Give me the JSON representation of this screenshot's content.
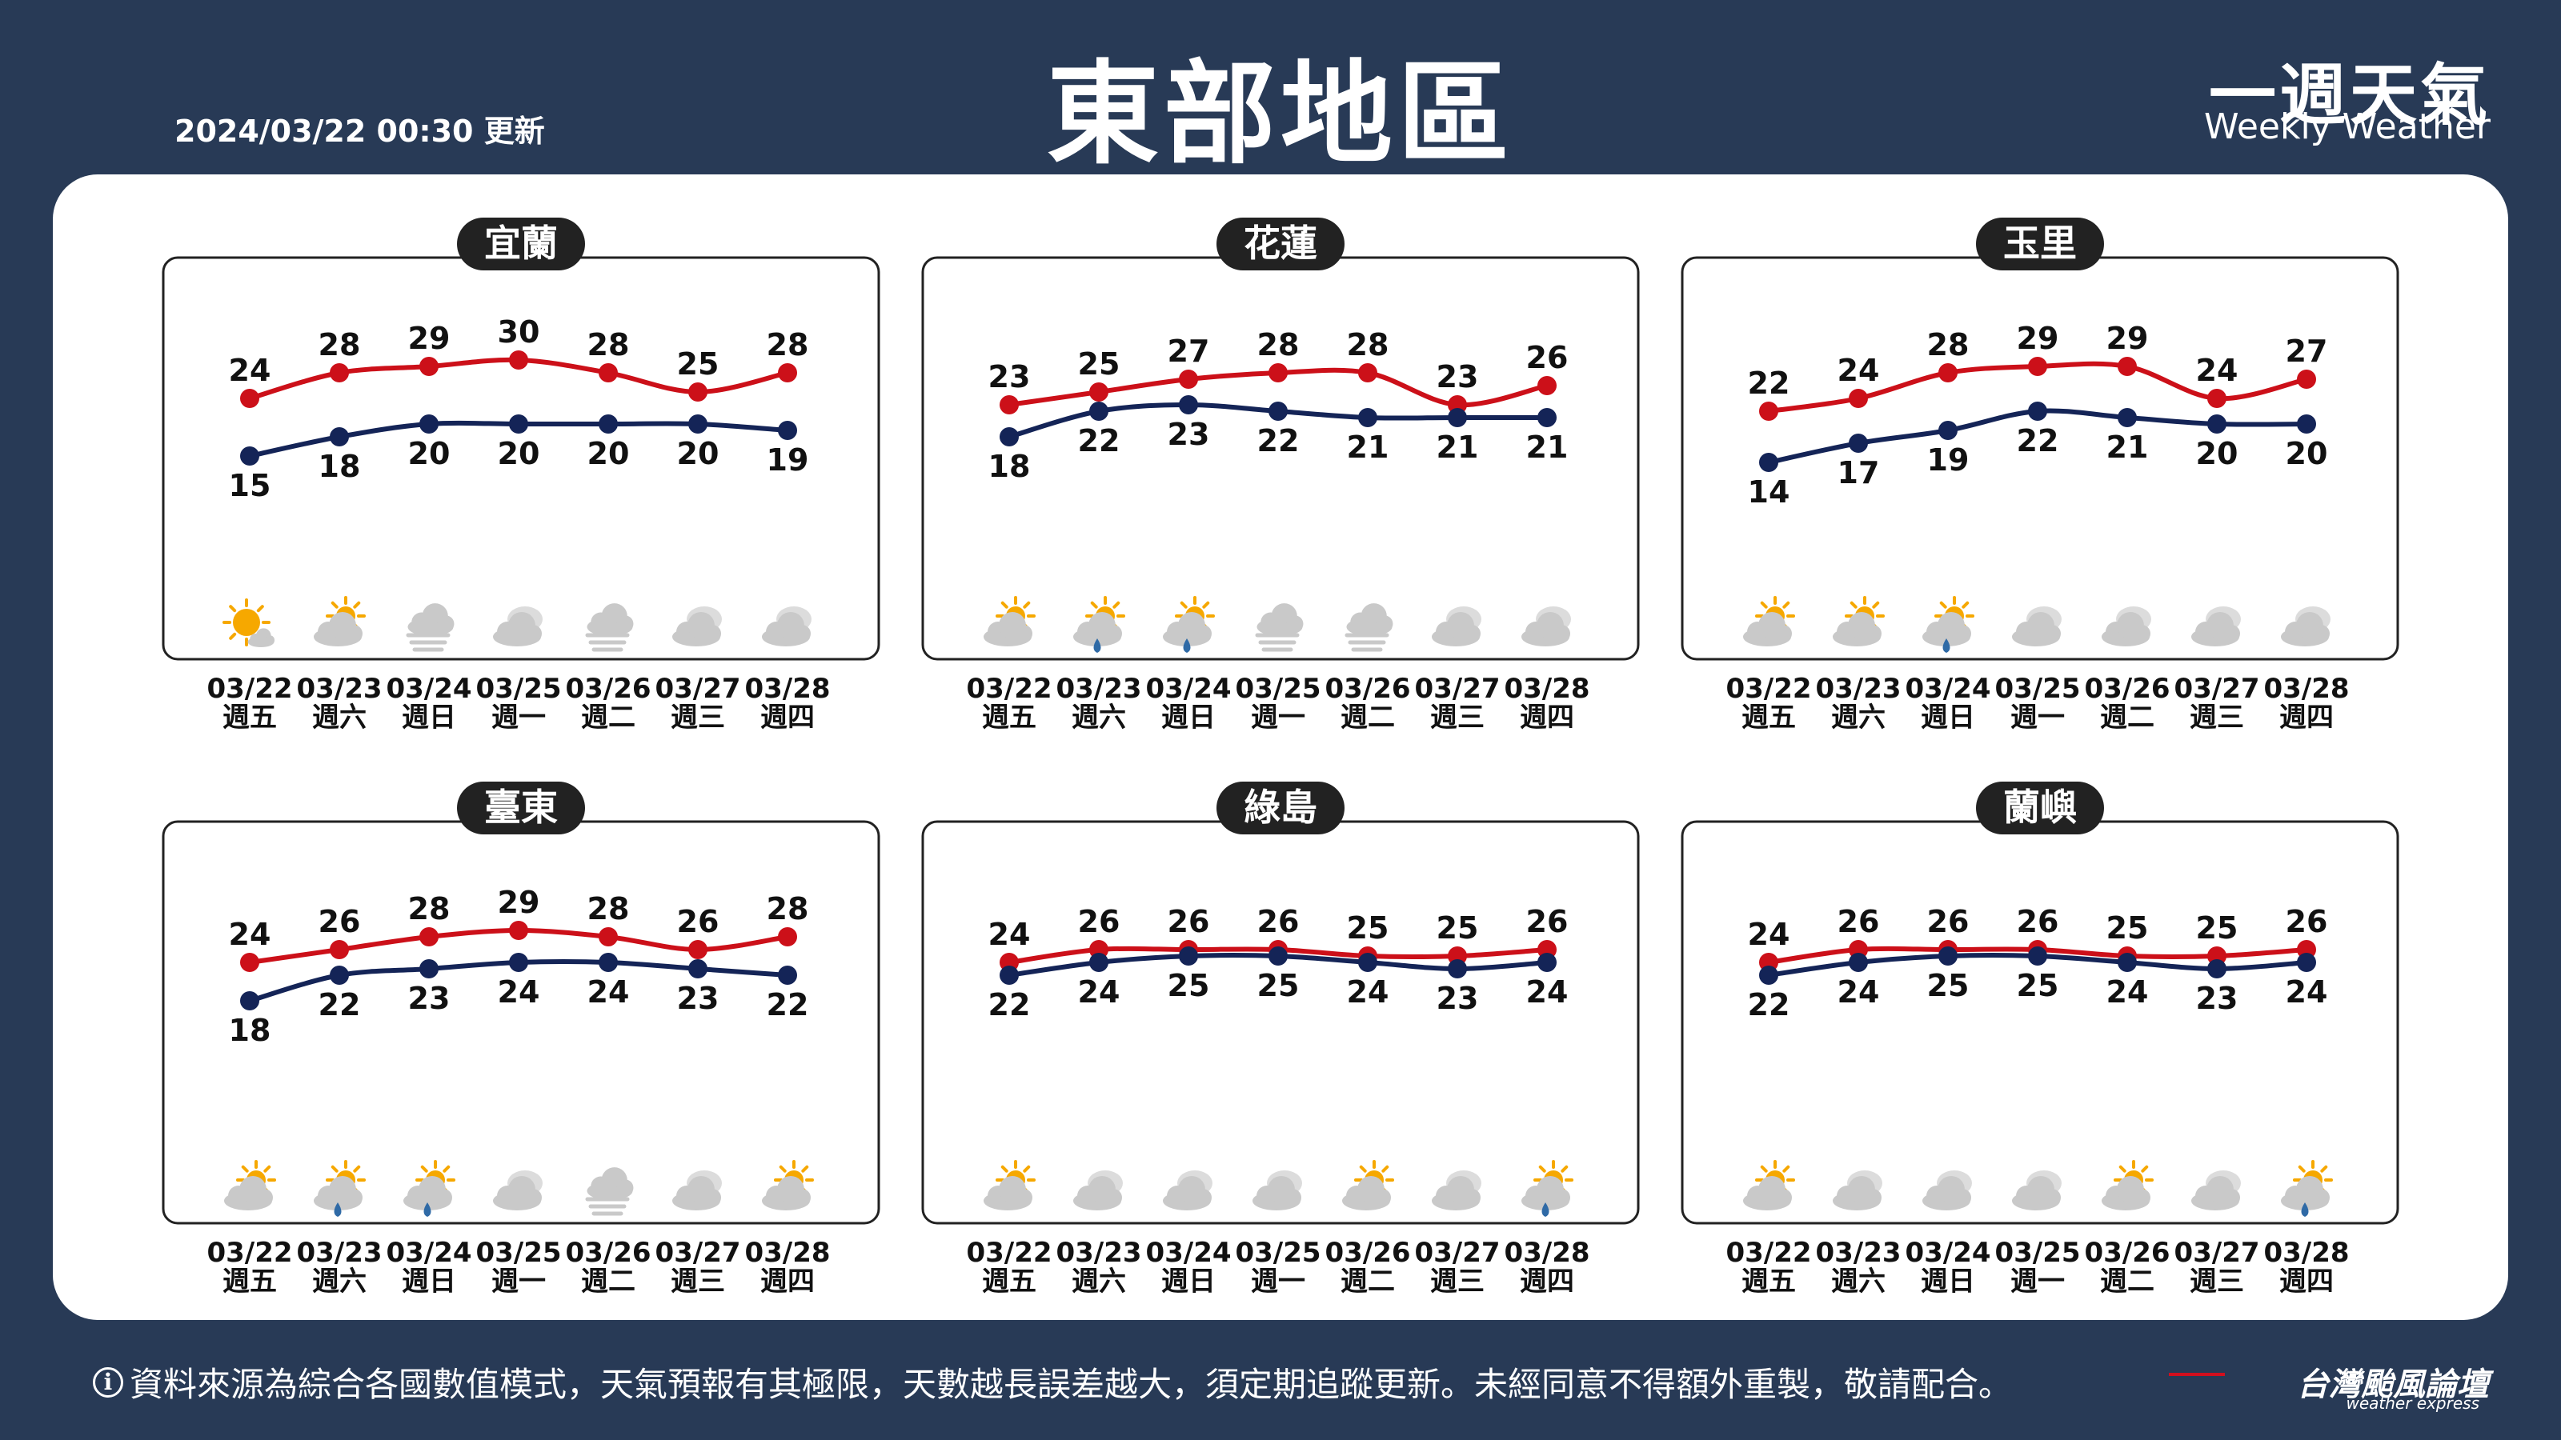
{
  "header": {
    "title": "東部地區",
    "update_time": "2024/03/22 00:30 更新",
    "brand_cn": "一週天氣",
    "brand_en": "Weekly Weather"
  },
  "footer": {
    "info_icon": "i",
    "note": "資料來源為綜合各國數值模式，天氣預報有其極限，天數越長誤差越大，須定期追蹤更新。未經同意不得額外重製，敬請配合。",
    "logo_cn": "台灣颱風論壇",
    "logo_en": "weather express"
  },
  "colors": {
    "background": "#283a56",
    "high_line": "#cc1019",
    "low_line": "#142457",
    "label_pill": "#222222",
    "sun": "#f6a800",
    "cloud": "#c9c9c9",
    "rain": "#2f6aa6"
  },
  "chart_data": [
    {
      "type": "line",
      "title": "宜蘭",
      "dates": [
        "03/22",
        "03/23",
        "03/24",
        "03/25",
        "03/26",
        "03/27",
        "03/28"
      ],
      "weekdays": [
        "週五",
        "週六",
        "週日",
        "週一",
        "週二",
        "週三",
        "週四"
      ],
      "series": [
        {
          "values": [
            24,
            28,
            29,
            30,
            28,
            25,
            28
          ]
        },
        {
          "values": [
            15,
            18,
            20,
            20,
            20,
            20,
            19
          ]
        }
      ],
      "icons": [
        "sunny-cloud-icon",
        "partly-cloudy-icon",
        "fog-cloud-icon",
        "cloudy-icon",
        "fog-cloud-icon",
        "cloudy-icon",
        "cloudy-icon"
      ]
    },
    {
      "type": "line",
      "title": "花蓮",
      "dates": [
        "03/22",
        "03/23",
        "03/24",
        "03/25",
        "03/26",
        "03/27",
        "03/28"
      ],
      "weekdays": [
        "週五",
        "週六",
        "週日",
        "週一",
        "週二",
        "週三",
        "週四"
      ],
      "series": [
        {
          "values": [
            23,
            25,
            27,
            28,
            28,
            23,
            26
          ]
        },
        {
          "values": [
            18,
            22,
            23,
            22,
            21,
            21,
            21
          ]
        }
      ],
      "icons": [
        "partly-cloudy-icon",
        "partly-cloudy-rain-icon",
        "partly-cloudy-rain-icon",
        "fog-cloud-icon",
        "fog-cloud-icon",
        "cloudy-icon",
        "cloudy-icon"
      ]
    },
    {
      "type": "line",
      "title": "玉里",
      "dates": [
        "03/22",
        "03/23",
        "03/24",
        "03/25",
        "03/26",
        "03/27",
        "03/28"
      ],
      "weekdays": [
        "週五",
        "週六",
        "週日",
        "週一",
        "週二",
        "週三",
        "週四"
      ],
      "series": [
        {
          "values": [
            22,
            24,
            28,
            29,
            29,
            24,
            27
          ]
        },
        {
          "values": [
            14,
            17,
            19,
            22,
            21,
            20,
            20
          ]
        }
      ],
      "icons": [
        "partly-cloudy-icon",
        "partly-cloudy-icon",
        "partly-cloudy-rain-icon",
        "cloudy-icon",
        "cloudy-icon",
        "cloudy-icon",
        "cloudy-icon"
      ]
    },
    {
      "type": "line",
      "title": "臺東",
      "dates": [
        "03/22",
        "03/23",
        "03/24",
        "03/25",
        "03/26",
        "03/27",
        "03/28"
      ],
      "weekdays": [
        "週五",
        "週六",
        "週日",
        "週一",
        "週二",
        "週三",
        "週四"
      ],
      "series": [
        {
          "values": [
            24,
            26,
            28,
            29,
            28,
            26,
            28
          ]
        },
        {
          "values": [
            18,
            22,
            23,
            24,
            24,
            23,
            22
          ]
        }
      ],
      "icons": [
        "partly-cloudy-icon",
        "partly-cloudy-rain-icon",
        "partly-cloudy-rain-icon",
        "cloudy-icon",
        "fog-cloud-icon",
        "cloudy-icon",
        "partly-cloudy-icon"
      ]
    },
    {
      "type": "line",
      "title": "綠島",
      "dates": [
        "03/22",
        "03/23",
        "03/24",
        "03/25",
        "03/26",
        "03/27",
        "03/28"
      ],
      "weekdays": [
        "週五",
        "週六",
        "週日",
        "週一",
        "週二",
        "週三",
        "週四"
      ],
      "series": [
        {
          "values": [
            24,
            26,
            26,
            26,
            25,
            25,
            26
          ]
        },
        {
          "values": [
            22,
            24,
            25,
            25,
            24,
            23,
            24
          ]
        }
      ],
      "icons": [
        "partly-cloudy-icon",
        "cloudy-icon",
        "cloudy-icon",
        "cloudy-icon",
        "partly-cloudy-icon",
        "cloudy-icon",
        "partly-cloudy-rain-icon"
      ]
    },
    {
      "type": "line",
      "title": "蘭嶼",
      "dates": [
        "03/22",
        "03/23",
        "03/24",
        "03/25",
        "03/26",
        "03/27",
        "03/28"
      ],
      "weekdays": [
        "週五",
        "週六",
        "週日",
        "週一",
        "週二",
        "週三",
        "週四"
      ],
      "series": [
        {
          "values": [
            24,
            26,
            26,
            26,
            25,
            25,
            26
          ]
        },
        {
          "values": [
            22,
            24,
            25,
            25,
            24,
            23,
            24
          ]
        }
      ],
      "icons": [
        "partly-cloudy-icon",
        "cloudy-icon",
        "cloudy-icon",
        "cloudy-icon",
        "partly-cloudy-icon",
        "cloudy-icon",
        "partly-cloudy-rain-icon"
      ]
    }
  ]
}
